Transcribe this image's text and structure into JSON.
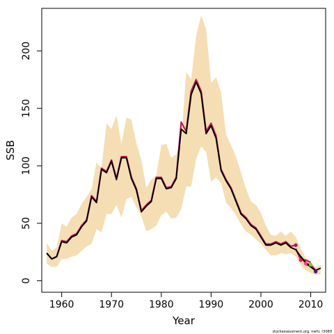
{
  "chart_data": {
    "type": "line",
    "title": "",
    "xlabel": "Year",
    "ylabel": "SSB",
    "xlim": [
      1956,
      2013
    ],
    "ylim": [
      -10,
      237
    ],
    "x_ticks": [
      1960,
      1970,
      1980,
      1990,
      2000,
      2010
    ],
    "y_ticks": [
      0,
      50,
      100,
      150,
      200
    ],
    "grid": false,
    "credit": "stockassessment.org, nwhl, r3089",
    "colors": {
      "band": "#f5deb3",
      "main_line": "#000000",
      "retro_lines": "#c2185b",
      "retro_points": [
        "#9c1b6a",
        "#e91e63",
        "#ff4081",
        "#66dd22",
        "#4a148c"
      ]
    },
    "band": {
      "x": [
        1957,
        1958,
        1959,
        1960,
        1961,
        1962,
        1963,
        1964,
        1965,
        1966,
        1967,
        1968,
        1969,
        1970,
        1971,
        1972,
        1973,
        1974,
        1975,
        1976,
        1977,
        1978,
        1979,
        1980,
        1981,
        1982,
        1983,
        1984,
        1985,
        1986,
        1987,
        1988,
        1989,
        1990,
        1991,
        1992,
        1993,
        1994,
        1995,
        1996,
        1997,
        1998,
        1999,
        2000,
        2001,
        2002,
        2003,
        2004,
        2005,
        2006,
        2007,
        2008,
        2009,
        2010,
        2011,
        2012
      ],
      "lower": [
        15,
        12,
        12,
        19,
        19,
        21,
        22,
        26,
        30,
        32,
        45,
        42,
        58,
        58,
        66,
        55,
        71,
        73,
        64,
        56,
        43,
        45,
        48,
        57,
        60,
        54,
        55,
        62,
        82,
        82,
        106,
        117,
        112,
        86,
        90,
        85,
        68,
        63,
        57,
        49,
        43,
        40,
        36,
        32,
        27,
        22,
        22,
        24,
        23,
        24,
        21,
        14,
        9,
        7,
        5,
        6
      ],
      "upper": [
        33,
        26,
        29,
        50,
        47,
        55,
        58,
        67,
        73,
        80,
        103,
        98,
        137,
        132,
        144,
        119,
        142,
        140,
        120,
        105,
        81,
        88,
        92,
        118,
        119,
        107,
        110,
        121,
        182,
        175,
        213,
        231,
        219,
        172,
        177,
        164,
        127,
        118,
        108,
        94,
        80,
        69,
        66,
        59,
        48,
        40,
        39,
        43,
        39,
        43,
        38,
        28,
        20,
        15,
        12,
        14
      ]
    },
    "series": [
      {
        "x": [
          1957,
          1958,
          1959,
          1960,
          1961,
          1962,
          1963,
          1964,
          1965,
          1966,
          1967,
          1968,
          1969,
          1970,
          1971,
          1972,
          1973,
          1974,
          1975,
          1976,
          1977,
          1978,
          1979,
          1980,
          1981,
          1982,
          1983,
          1984,
          1985,
          1986,
          1987,
          1988,
          1989,
          1990,
          1991,
          1992,
          1993,
          1994,
          1995,
          1996,
          1997,
          1998,
          1999,
          2000,
          2001,
          2002,
          2003,
          2004,
          2005,
          2006,
          2007,
          2008,
          2009,
          2010,
          2011,
          2012
        ],
        "values": [
          24,
          19,
          21,
          34,
          33,
          38,
          40,
          47,
          52,
          73,
          68,
          97,
          94,
          104,
          88,
          107,
          107,
          89,
          79,
          60,
          65,
          69,
          89,
          89,
          80,
          81,
          89,
          132,
          128,
          162,
          173,
          163,
          128,
          135,
          124,
          96,
          87,
          80,
          69,
          58,
          54,
          48,
          45,
          38,
          31,
          31,
          33,
          31,
          33,
          29,
          27,
          21,
          16,
          12,
          9,
          11
        ]
      },
      {
        "x": [
          1957,
          1958,
          1959,
          1960,
          1961,
          1962,
          1963,
          1964,
          1965,
          1966,
          1967,
          1968,
          1969,
          1970,
          1971,
          1972,
          1973,
          1974,
          1975,
          1976,
          1977,
          1978,
          1979,
          1980,
          1981,
          1982,
          1983,
          1984,
          1985,
          1986,
          1987,
          1988,
          1989,
          1990,
          1991,
          1992,
          1993,
          1994,
          1995,
          1996,
          1997,
          1998,
          1999,
          2000,
          2001,
          2002,
          2003,
          2004,
          2005,
          2006,
          2007
        ],
        "values": [
          24,
          19,
          21,
          35,
          34,
          39,
          41,
          48,
          53,
          74,
          69,
          98,
          95,
          105,
          89,
          108,
          108,
          90,
          80,
          61,
          66,
          70,
          90,
          90,
          81,
          82,
          90,
          138,
          130,
          165,
          175,
          165,
          130,
          137,
          126,
          97,
          88,
          81,
          70,
          59,
          55,
          49,
          46,
          39,
          32,
          32,
          34,
          32,
          34,
          30,
          31
        ]
      },
      {
        "x": [
          2007,
          2008,
          2009,
          2010
        ],
        "values": [
          28,
          18,
          18,
          16
        ]
      },
      {
        "x": [
          2008,
          2009,
          2010,
          2011
        ],
        "values": [
          21,
          15,
          14,
          9
        ]
      },
      {
        "x": [
          2009,
          2010,
          2011
        ],
        "values": [
          14,
          13,
          8
        ]
      }
    ],
    "retro_points": {
      "x": [
        2007,
        2008,
        2009,
        2010,
        2011
      ],
      "values": [
        31,
        18,
        15,
        14,
        8
      ]
    }
  }
}
